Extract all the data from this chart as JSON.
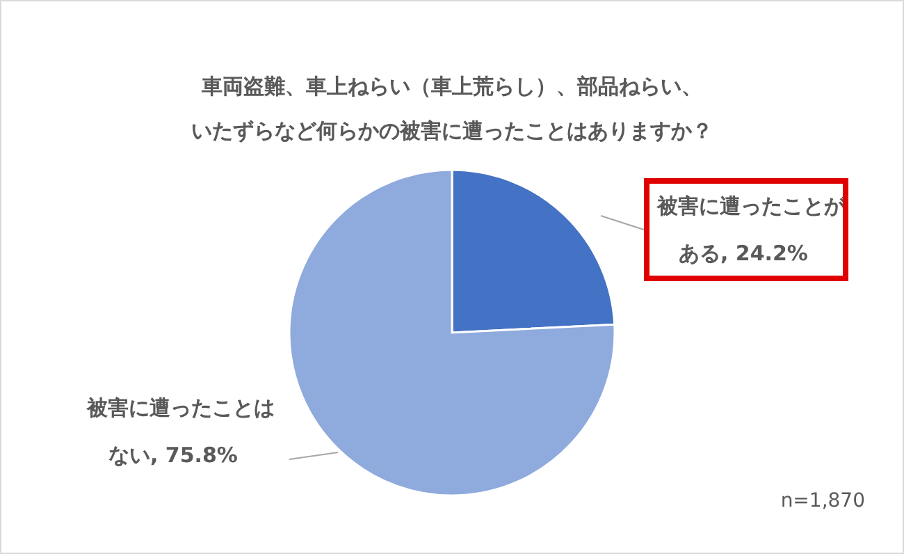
{
  "chart_data": {
    "type": "pie",
    "title": [
      "車両盗難、車上ねらい（車上荒らし）、部品ねらい、",
      "いたずらなど何らかの被害に遭ったことはありますか？"
    ],
    "categories": [
      "被害に遭ったことがある",
      "被害に遭ったことはない"
    ],
    "values": [
      24.2,
      75.8
    ],
    "colors": [
      "#4472c4",
      "#8faadc"
    ],
    "value_labels": [
      ", 24.2%",
      ", 75.8%"
    ],
    "legend": false,
    "annotations": [
      "n=1,870"
    ]
  }
}
